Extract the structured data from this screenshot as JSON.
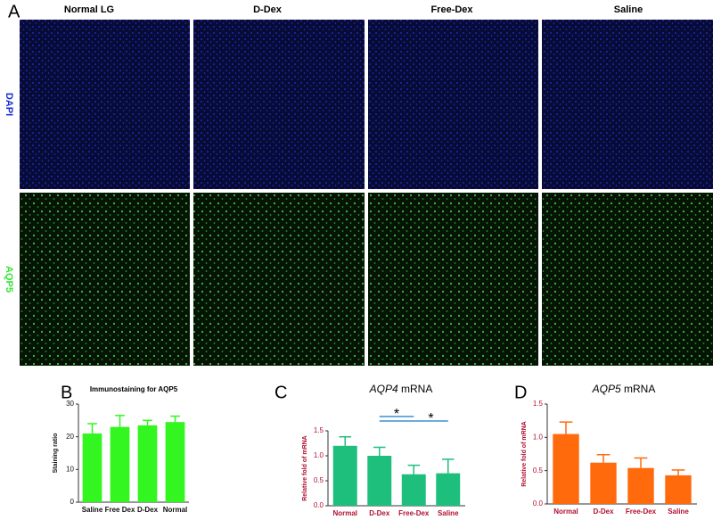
{
  "panel_labels": [
    "A",
    "B",
    "C",
    "D"
  ],
  "column_headers": [
    "Normal LG",
    "D-Dex",
    "Free-Dex",
    "Saline"
  ],
  "row_labels": [
    "DAPI",
    "AQP5"
  ],
  "chart_data": [
    {
      "type": "bar",
      "title": "Immunostaining for AQP5",
      "italic_first_word": false,
      "y_label": "Staining ratio",
      "categories": [
        "Saline",
        "Free Dex",
        "D-Dex",
        "Normal"
      ],
      "values": [
        21,
        23,
        23.5,
        24.5
      ],
      "errors": [
        3,
        3.5,
        1.5,
        1.8
      ],
      "color": "#33f51f",
      "ylim": [
        0,
        30
      ],
      "yticks": [
        0,
        10,
        20,
        30
      ]
    },
    {
      "type": "bar",
      "title": "AQP4 mRNA",
      "italic_first_word": true,
      "y_label": "Relative fold of mRNA",
      "categories": [
        "Normal",
        "D-Dex",
        "Free-Dex",
        "Saline"
      ],
      "values": [
        1.2,
        1.0,
        0.63,
        0.65
      ],
      "errors": [
        0.18,
        0.17,
        0.18,
        0.28
      ],
      "color": "#1ebf7c",
      "ylim": [
        0,
        1.5
      ],
      "yticks": [
        {
          "value": 0,
          "label": "0.0"
        },
        0.5,
        {
          "value": 1,
          "label": "1.0"
        },
        1.5
      ],
      "significance": [
        {
          "between": [
            "D-Dex",
            "Free-Dex"
          ],
          "label": "*"
        },
        {
          "between": [
            "D-Dex",
            "Saline"
          ],
          "label": "*"
        }
      ]
    },
    {
      "type": "bar",
      "title": "AQP5 mRNA",
      "italic_first_word": true,
      "y_label": "Relative fold of mRNA",
      "categories": [
        "Normal",
        "D-Dex",
        "Free-Dex",
        "Saline"
      ],
      "values": [
        1.05,
        0.62,
        0.54,
        0.43
      ],
      "errors": [
        0.18,
        0.12,
        0.15,
        0.08
      ],
      "color": "#ff6a0d",
      "ylim": [
        0,
        1.5
      ],
      "yticks": [
        {
          "value": 0,
          "label": "0.0"
        },
        0.5,
        {
          "value": 1,
          "label": "1.0"
        },
        1.5
      ]
    }
  ]
}
